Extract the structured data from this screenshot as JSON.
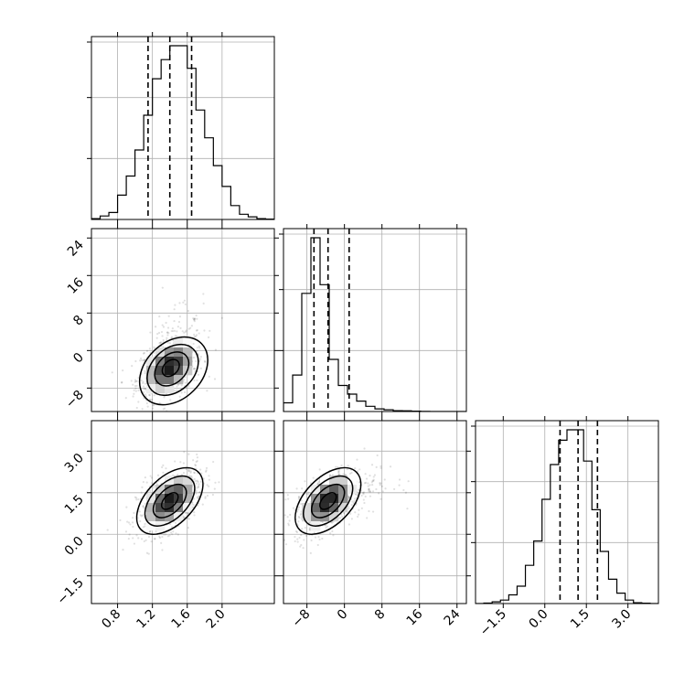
{
  "chart_data": {
    "type": "corner",
    "title": "",
    "grid": true,
    "parameters": [
      {
        "range": [
          0.5,
          2.6
        ],
        "ticks": [
          0.8,
          1.2,
          1.6,
          2.0
        ],
        "tick_labels": [
          "0.8",
          "1.2",
          "1.6",
          "2.0"
        ],
        "mean": 1.4,
        "sd": 0.19,
        "quantiles": [
          1.15,
          1.4,
          1.65
        ],
        "histogram": {
          "edges_start": 0.5,
          "bin_width": 0.1,
          "counts": [
            0.005,
            0.02,
            0.04,
            0.14,
            0.25,
            0.4,
            0.6,
            0.81,
            0.92,
            1.0,
            1.0,
            0.87,
            0.63,
            0.47,
            0.31,
            0.19,
            0.08,
            0.03,
            0.015,
            0.005,
            0.002
          ]
        }
      },
      {
        "range": [
          -13,
          26
        ],
        "ticks": [
          -8,
          0,
          8,
          16,
          24
        ],
        "tick_labels": [
          "−8",
          "0",
          "8",
          "16",
          "24"
        ],
        "mean": -3.5,
        "sd": 3.5,
        "quantiles": [
          -6.5,
          -3.5,
          1
        ],
        "histogram": {
          "edges_start": -13,
          "bin_width": 1.95,
          "counts": [
            0.05,
            0.21,
            0.68,
            1.0,
            0.73,
            0.3,
            0.15,
            0.1,
            0.06,
            0.03,
            0.015,
            0.01,
            0.005,
            0.004,
            0.002,
            0.001,
            0.0,
            0.0,
            0.0,
            0.0
          ]
        }
      },
      {
        "range": [
          -2.5,
          4.1
        ],
        "ticks": [
          -1.5,
          0.0,
          1.5,
          3.0
        ],
        "tick_labels": [
          "−1.5",
          "0.0",
          "1.5",
          "3.0"
        ],
        "mean": 1.2,
        "sd": 0.6,
        "quantiles": [
          0.55,
          1.2,
          1.9
        ],
        "histogram": {
          "edges_start": -2.5,
          "bin_width": 0.3,
          "counts": [
            0.0,
            0.003,
            0.01,
            0.02,
            0.05,
            0.1,
            0.22,
            0.36,
            0.6,
            0.8,
            0.94,
            1.0,
            1.0,
            0.82,
            0.54,
            0.3,
            0.14,
            0.06,
            0.02,
            0.005,
            0.002,
            0.0
          ]
        }
      }
    ],
    "correlations": {
      "0-1": 0.4,
      "0-2": 0.5,
      "1-2": 0.5
    },
    "contour_levels_sigma": [
      0.5,
      1.0,
      1.5,
      2.0
    ],
    "scatter_points": 700
  }
}
